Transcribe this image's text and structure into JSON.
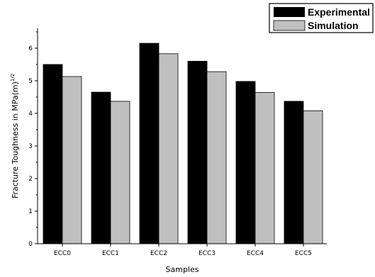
{
  "chart_data": {
    "type": "bar",
    "categories": [
      "ECC0",
      "ECC1",
      "ECC2",
      "ECC3",
      "ECC4",
      "ECC5"
    ],
    "series": [
      {
        "name": "Experimental",
        "values": [
          5.5,
          4.65,
          6.15,
          5.6,
          4.98,
          4.37
        ],
        "color": "#000000"
      },
      {
        "name": "Simulation",
        "values": [
          5.13,
          4.37,
          5.83,
          5.28,
          4.64,
          4.08
        ],
        "color": "#c0c0c0"
      }
    ],
    "xlabel": "Samples",
    "ylabel_main": "Fracture Toughness in MPa(m)",
    "ylabel_superscript": "1/2",
    "ylim": [
      0,
      6.5
    ],
    "yticks": [
      "0",
      "1",
      "2",
      "3",
      "4",
      "5",
      "6"
    ],
    "grid": false,
    "legend_position": "top-right"
  }
}
